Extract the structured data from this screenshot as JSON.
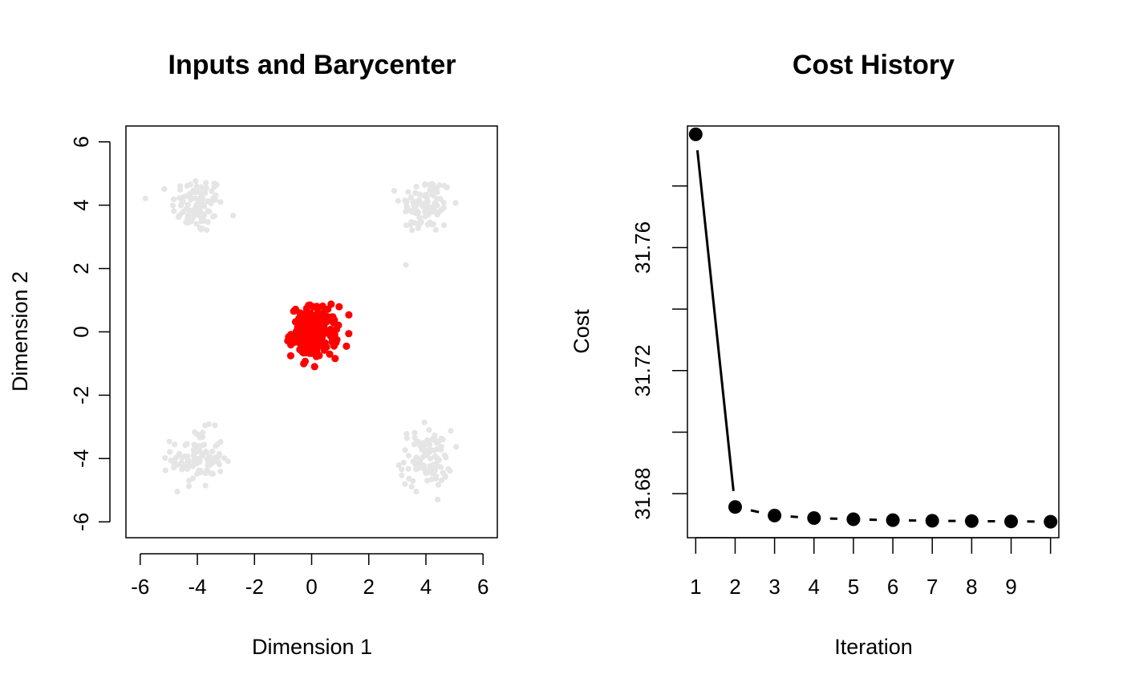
{
  "chart_data": [
    {
      "type": "scatter",
      "title": "Inputs and Barycenter",
      "xlabel": "Dimension 1",
      "ylabel": "Dimension 2",
      "xlim": [
        -6.5,
        6.5
      ],
      "ylim": [
        -6.5,
        6.5
      ],
      "xticks": [
        -6,
        -4,
        -2,
        0,
        2,
        4,
        6
      ],
      "yticks": [
        -6,
        -4,
        -2,
        0,
        2,
        4,
        6
      ],
      "grid": false,
      "series": [
        {
          "role": "inputs",
          "color": "#e5e5e5",
          "clusters": [
            {
              "center": [
                -4,
                4
              ],
              "sd": 0.45,
              "n": 100
            },
            {
              "center": [
                4,
                4
              ],
              "sd": 0.45,
              "n": 100
            },
            {
              "center": [
                -4,
                -4
              ],
              "sd": 0.45,
              "n": 100
            },
            {
              "center": [
                4,
                -4
              ],
              "sd": 0.45,
              "n": 100
            }
          ]
        },
        {
          "role": "barycenter",
          "color": "#ff0000",
          "clusters": [
            {
              "center": [
                0.1,
                0.0
              ],
              "sd": 0.4,
              "n": 200
            }
          ]
        }
      ]
    },
    {
      "type": "line",
      "title": "Cost History",
      "xlabel": "Iteration",
      "ylabel": "Cost",
      "x": [
        1,
        2,
        3,
        4,
        5,
        6,
        7,
        8,
        9,
        10
      ],
      "y": [
        31.7968,
        31.6757,
        31.6729,
        31.6721,
        31.6717,
        31.6714,
        31.6712,
        31.6711,
        31.671,
        31.6709
      ],
      "xticks": [
        1,
        2,
        3,
        4,
        5,
        6,
        7,
        8,
        9,
        10
      ],
      "xtick_labels": [
        "1",
        "2",
        "3",
        "4",
        "5",
        "6",
        "7",
        "8",
        "9",
        ""
      ],
      "yticks": [
        31.68,
        31.7,
        31.72,
        31.74,
        31.76,
        31.78
      ],
      "ytick_labels": [
        "31.68",
        "",
        "31.72",
        "",
        "31.76",
        ""
      ],
      "color": "#000000",
      "grid": false
    }
  ]
}
